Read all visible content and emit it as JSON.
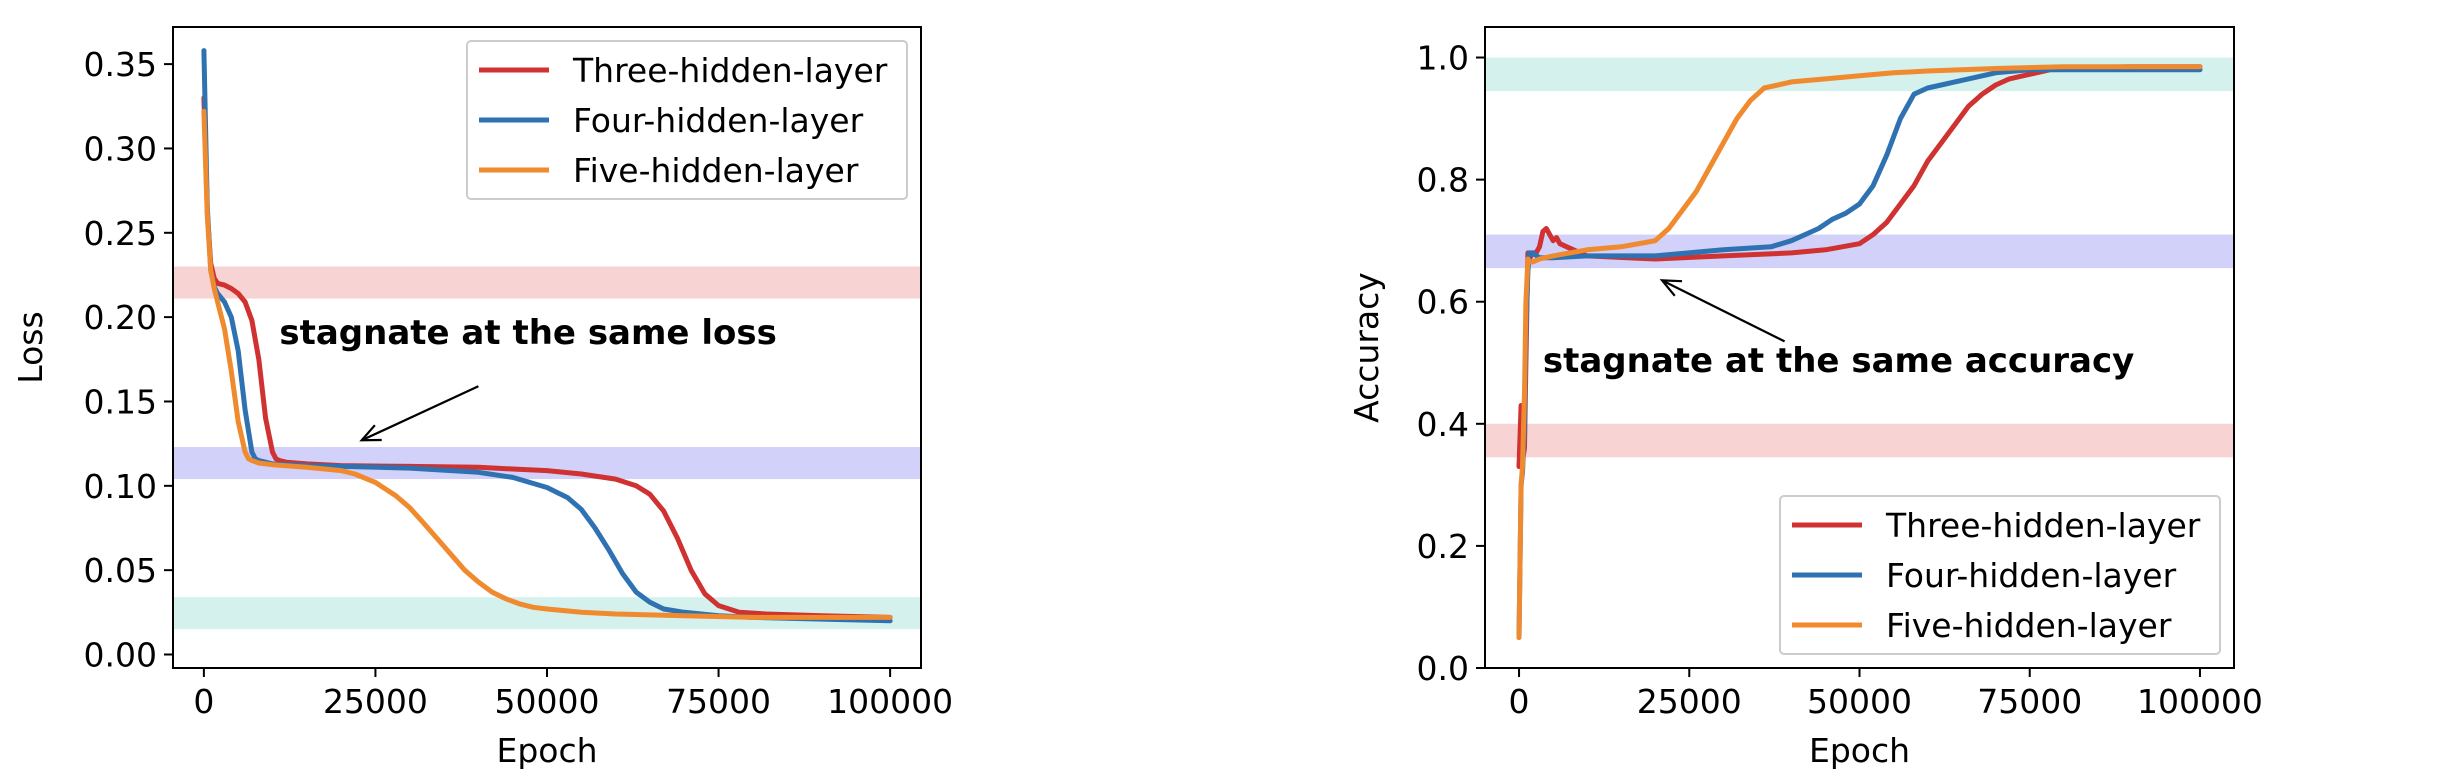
{
  "chart_data": [
    {
      "id": "loss",
      "type": "line",
      "xlabel": "Epoch",
      "ylabel": "Loss",
      "xlim": [
        -4500,
        104500
      ],
      "ylim": [
        -0.008,
        0.372
      ],
      "xticks": [
        0,
        25000,
        50000,
        75000,
        100000
      ],
      "xtick_labels": [
        "0",
        "25000",
        "50000",
        "75000",
        "100000"
      ],
      "yticks": [
        0.0,
        0.05,
        0.1,
        0.15,
        0.2,
        0.25,
        0.3,
        0.35
      ],
      "ytick_labels": [
        "0.00",
        "0.05",
        "0.10",
        "0.15",
        "0.20",
        "0.25",
        "0.30",
        "0.35"
      ],
      "grid": false,
      "legend_position": "top-right",
      "bands": [
        {
          "from": 0.211,
          "to": 0.23,
          "color": "#f4b6b6"
        },
        {
          "from": 0.104,
          "to": 0.123,
          "color": "#b3b3f5"
        },
        {
          "from": 0.015,
          "to": 0.034,
          "color": "#b7e8e3"
        }
      ],
      "annotation": {
        "text": "stagnate at the same loss",
        "text_at": [
          11000,
          0.184
        ],
        "arrow_from": [
          40000,
          0.159
        ],
        "arrow_to": [
          23000,
          0.127
        ]
      },
      "series": [
        {
          "name": "Three-hidden-layer",
          "color": "#d03131",
          "x": [
            0,
            500,
            1000,
            1500,
            2000,
            3000,
            4000,
            5000,
            6000,
            7000,
            8000,
            9000,
            10000,
            10500,
            11000,
            12000,
            15000,
            20000,
            30000,
            40000,
            45000,
            50000,
            55000,
            60000,
            63000,
            65000,
            67000,
            69000,
            71000,
            73000,
            75000,
            78000,
            82000,
            90000,
            100000
          ],
          "y": [
            0.33,
            0.262,
            0.232,
            0.223,
            0.22,
            0.219,
            0.217,
            0.214,
            0.209,
            0.198,
            0.175,
            0.14,
            0.12,
            0.116,
            0.115,
            0.114,
            0.113,
            0.112,
            0.1115,
            0.111,
            0.11,
            0.109,
            0.107,
            0.104,
            0.1,
            0.095,
            0.085,
            0.069,
            0.05,
            0.036,
            0.029,
            0.025,
            0.024,
            0.023,
            0.022
          ]
        },
        {
          "name": "Four-hidden-layer",
          "color": "#2f72b2",
          "x": [
            0,
            500,
            1000,
            1500,
            2000,
            3000,
            4000,
            5000,
            6000,
            7000,
            7500,
            8000,
            9000,
            10000,
            15000,
            20000,
            30000,
            40000,
            45000,
            50000,
            53000,
            55000,
            57000,
            59000,
            61000,
            63000,
            65000,
            67000,
            70000,
            75000,
            80000,
            90000,
            100000
          ],
          "y": [
            0.358,
            0.265,
            0.228,
            0.218,
            0.214,
            0.209,
            0.2,
            0.18,
            0.145,
            0.12,
            0.116,
            0.115,
            0.114,
            0.113,
            0.112,
            0.1115,
            0.1105,
            0.108,
            0.105,
            0.099,
            0.093,
            0.086,
            0.075,
            0.062,
            0.048,
            0.037,
            0.031,
            0.027,
            0.025,
            0.023,
            0.022,
            0.021,
            0.02
          ]
        },
        {
          "name": "Five-hidden-layer",
          "color": "#f08a2e",
          "x": [
            0,
            500,
            1000,
            1500,
            2000,
            3000,
            4000,
            5000,
            6000,
            6500,
            7000,
            8000,
            10000,
            15000,
            20000,
            22000,
            25000,
            28000,
            30000,
            32000,
            35000,
            38000,
            40000,
            42000,
            44000,
            46000,
            48000,
            50000,
            55000,
            60000,
            70000,
            80000,
            90000,
            100000
          ],
          "y": [
            0.322,
            0.26,
            0.228,
            0.217,
            0.209,
            0.193,
            0.168,
            0.138,
            0.12,
            0.116,
            0.115,
            0.1135,
            0.1125,
            0.111,
            0.109,
            0.107,
            0.102,
            0.094,
            0.087,
            0.078,
            0.064,
            0.05,
            0.043,
            0.037,
            0.033,
            0.03,
            0.028,
            0.027,
            0.025,
            0.024,
            0.023,
            0.022,
            0.022,
            0.022
          ]
        }
      ]
    },
    {
      "id": "accuracy",
      "type": "line",
      "xlabel": "Epoch",
      "ylabel": "Accuracy",
      "xlim": [
        -5000,
        105000
      ],
      "ylim": [
        0.0,
        1.05
      ],
      "xticks": [
        0,
        25000,
        50000,
        75000,
        100000
      ],
      "xtick_labels": [
        "0",
        "25000",
        "50000",
        "75000",
        "100000"
      ],
      "yticks": [
        0.0,
        0.2,
        0.4,
        0.6,
        0.8,
        1.0
      ],
      "ytick_labels": [
        "0.0",
        "0.2",
        "0.4",
        "0.6",
        "0.8",
        "1.0"
      ],
      "grid": false,
      "legend_position": "bottom-right",
      "bands": [
        {
          "from": 0.945,
          "to": 1.0,
          "color": "#b7e8e3"
        },
        {
          "from": 0.655,
          "to": 0.71,
          "color": "#b3b3f5"
        },
        {
          "from": 0.345,
          "to": 0.4,
          "color": "#f4b6b6"
        }
      ],
      "annotation": {
        "text": "stagnate at the same accuracy",
        "text_at": [
          3500,
          0.485
        ],
        "arrow_from": [
          39000,
          0.535
        ],
        "arrow_to": [
          21000,
          0.635
        ]
      },
      "series": [
        {
          "name": "Three-hidden-layer",
          "color": "#d03131",
          "x": [
            0,
            300,
            500,
            800,
            1000,
            1300,
            1500,
            2000,
            2500,
            3000,
            3500,
            4000,
            4500,
            5000,
            5500,
            6000,
            7000,
            8000,
            9000,
            10000,
            20000,
            30000,
            40000,
            45000,
            50000,
            52000,
            54000,
            56000,
            58000,
            60000,
            62000,
            64000,
            66000,
            68000,
            70000,
            72000,
            74000,
            76000,
            78000,
            80000,
            90000,
            100000
          ],
          "y": [
            0.33,
            0.43,
            0.34,
            0.36,
            0.5,
            0.68,
            0.67,
            0.68,
            0.68,
            0.69,
            0.715,
            0.72,
            0.71,
            0.7,
            0.705,
            0.695,
            0.69,
            0.685,
            0.68,
            0.675,
            0.67,
            0.675,
            0.68,
            0.685,
            0.695,
            0.71,
            0.73,
            0.76,
            0.79,
            0.83,
            0.86,
            0.89,
            0.92,
            0.94,
            0.955,
            0.965,
            0.97,
            0.975,
            0.98,
            0.983,
            0.985,
            0.985
          ]
        },
        {
          "name": "Four-hidden-layer",
          "color": "#2f72b2",
          "x": [
            0,
            300,
            500,
            800,
            1000,
            1300,
            1500,
            2000,
            3000,
            5000,
            10000,
            20000,
            30000,
            37000,
            40000,
            42000,
            44000,
            46000,
            48000,
            50000,
            52000,
            54000,
            56000,
            58000,
            60000,
            62000,
            64000,
            66000,
            70000,
            75000,
            80000,
            90000,
            100000
          ],
          "y": [
            0.05,
            0.3,
            0.32,
            0.4,
            0.55,
            0.65,
            0.68,
            0.68,
            0.672,
            0.672,
            0.675,
            0.675,
            0.685,
            0.69,
            0.7,
            0.71,
            0.72,
            0.735,
            0.745,
            0.76,
            0.79,
            0.84,
            0.9,
            0.94,
            0.95,
            0.955,
            0.96,
            0.965,
            0.975,
            0.98,
            0.98,
            0.98,
            0.98
          ]
        },
        {
          "name": "Five-hidden-layer",
          "color": "#f08a2e",
          "x": [
            0,
            300,
            500,
            800,
            1000,
            1300,
            1500,
            2000,
            3000,
            5000,
            10000,
            15000,
            20000,
            22000,
            24000,
            26000,
            28000,
            30000,
            32000,
            34000,
            36000,
            38000,
            40000,
            45000,
            50000,
            55000,
            60000,
            65000,
            70000,
            80000,
            90000,
            100000
          ],
          "y": [
            0.05,
            0.3,
            0.33,
            0.45,
            0.6,
            0.67,
            0.665,
            0.665,
            0.67,
            0.675,
            0.685,
            0.69,
            0.7,
            0.72,
            0.75,
            0.78,
            0.82,
            0.86,
            0.9,
            0.93,
            0.95,
            0.955,
            0.96,
            0.965,
            0.97,
            0.975,
            0.978,
            0.98,
            0.982,
            0.985,
            0.985,
            0.985
          ]
        }
      ]
    }
  ]
}
